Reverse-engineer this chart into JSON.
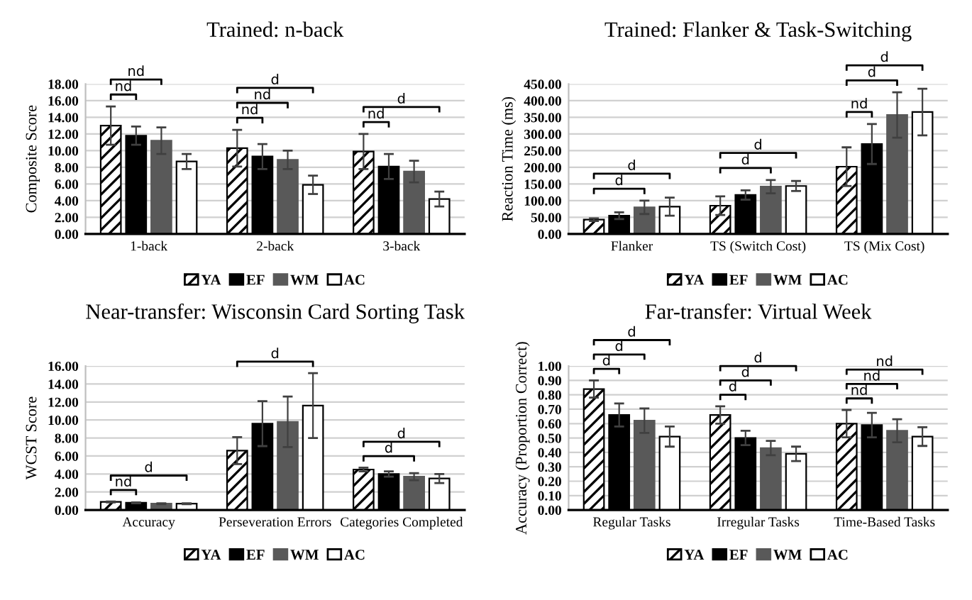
{
  "chart_data": [
    {
      "type": "bar",
      "title": "Trained: n-back",
      "ylabel": "Composite Score",
      "categories": [
        "1-back",
        "2-back",
        "3-back"
      ],
      "series": [
        {
          "name": "YA",
          "color": "#000000",
          "values": [
            13.0,
            10.3,
            9.9
          ],
          "errors": [
            2.3,
            2.2,
            2.1
          ]
        },
        {
          "name": "EF",
          "color": "#000000",
          "values": [
            11.8,
            9.3,
            8.1
          ],
          "errors": [
            1.1,
            1.5,
            1.5
          ]
        },
        {
          "name": "WM",
          "color": "#595959",
          "values": [
            11.2,
            8.9,
            7.5
          ],
          "errors": [
            1.6,
            1.1,
            1.3
          ]
        },
        {
          "name": "AC",
          "color": "#ffffff",
          "values": [
            8.7,
            5.9,
            4.2
          ],
          "errors": [
            0.9,
            1.1,
            0.9
          ]
        }
      ],
      "ylim": [
        0,
        18
      ],
      "yticks": [
        {
          "value": 0,
          "label": "0.00"
        },
        {
          "value": 2,
          "label": "2.00"
        },
        {
          "value": 4,
          "label": "4.00"
        },
        {
          "value": 6,
          "label": "6.00"
        },
        {
          "value": 8,
          "label": "8.00"
        },
        {
          "value": 10,
          "label": "10.00"
        },
        {
          "value": 12,
          "label": "12.00"
        },
        {
          "value": 14,
          "label": "14.00"
        },
        {
          "value": 16,
          "label": "16.00"
        },
        {
          "value": 18,
          "label": "18.00"
        }
      ],
      "grid": "y",
      "legend": "bottom",
      "annotations": [
        "nd",
        "nd",
        "nd",
        "nd",
        "d",
        "nd",
        "d"
      ]
    },
    {
      "type": "bar",
      "title": "Trained: Flanker & Task-Switching",
      "ylabel": "Reaction Time (ms)",
      "categories": [
        "Flanker",
        "TS (Switch Cost)",
        "TS (Mix Cost)"
      ],
      "series": [
        {
          "name": "YA",
          "color": "#000000",
          "values": [
            43,
            85,
            202
          ],
          "errors": [
            4,
            28,
            58
          ]
        },
        {
          "name": "EF",
          "color": "#000000",
          "values": [
            55,
            117,
            270
          ],
          "errors": [
            10,
            14,
            60
          ]
        },
        {
          "name": "WM",
          "color": "#595959",
          "values": [
            80,
            142,
            357
          ],
          "errors": [
            20,
            20,
            68
          ]
        },
        {
          "name": "AC",
          "color": "#ffffff",
          "values": [
            82,
            144,
            366
          ],
          "errors": [
            27,
            15,
            70
          ]
        }
      ],
      "ylim": [
        0,
        450
      ],
      "yticks": [
        {
          "value": 0,
          "label": "0.00"
        },
        {
          "value": 50,
          "label": "50.00"
        },
        {
          "value": 100,
          "label": "100.00"
        },
        {
          "value": 150,
          "label": "150.00"
        },
        {
          "value": 200,
          "label": "200.00"
        },
        {
          "value": 250,
          "label": "250.00"
        },
        {
          "value": 300,
          "label": "300.00"
        },
        {
          "value": 350,
          "label": "350.00"
        },
        {
          "value": 400,
          "label": "400.00"
        },
        {
          "value": 450,
          "label": "450.00"
        }
      ],
      "grid": "y",
      "legend": "bottom",
      "annotations": [
        "d",
        "d",
        "d",
        "d",
        "nd",
        "d",
        "d"
      ]
    },
    {
      "type": "bar",
      "title": "Near-transfer: Wisconsin Card Sorting Task",
      "ylabel": "WCST Score",
      "categories": [
        "Accuracy",
        "Perseveration Errors",
        "Categories Completed"
      ],
      "series": [
        {
          "name": "YA",
          "color": "#000000",
          "values": [
            0.9,
            6.6,
            4.5
          ],
          "errors": [
            0.05,
            1.5,
            0.2
          ]
        },
        {
          "name": "EF",
          "color": "#000000",
          "values": [
            0.8,
            9.6,
            4.0
          ],
          "errors": [
            0.05,
            2.5,
            0.3
          ]
        },
        {
          "name": "WM",
          "color": "#595959",
          "values": [
            0.7,
            9.8,
            3.7
          ],
          "errors": [
            0.05,
            2.8,
            0.4
          ]
        },
        {
          "name": "AC",
          "color": "#ffffff",
          "values": [
            0.7,
            11.6,
            3.5
          ],
          "errors": [
            0.05,
            3.6,
            0.5
          ]
        }
      ],
      "ylim": [
        0,
        16
      ],
      "yticks": [
        {
          "value": 0,
          "label": "0.00"
        },
        {
          "value": 2,
          "label": "2.00"
        },
        {
          "value": 4,
          "label": "4.00"
        },
        {
          "value": 6,
          "label": "6.00"
        },
        {
          "value": 8,
          "label": "8.00"
        },
        {
          "value": 10,
          "label": "10.00"
        },
        {
          "value": 12,
          "label": "12.00"
        },
        {
          "value": 14,
          "label": "14.00"
        },
        {
          "value": 16,
          "label": "16.00"
        }
      ],
      "grid": "y",
      "legend": "bottom",
      "annotations": [
        "nd",
        "d",
        "d",
        "d",
        "d"
      ]
    },
    {
      "type": "bar",
      "title": "Far-transfer: Virtual Week",
      "ylabel": "Accuracy (Proportion Correct)",
      "categories": [
        "Regular Tasks",
        "Irregular Tasks",
        "Time-Based Tasks"
      ],
      "series": [
        {
          "name": "YA",
          "color": "#000000",
          "values": [
            0.84,
            0.66,
            0.6
          ],
          "errors": [
            0.06,
            0.06,
            0.095
          ]
        },
        {
          "name": "EF",
          "color": "#000000",
          "values": [
            0.66,
            0.5,
            0.59
          ],
          "errors": [
            0.08,
            0.05,
            0.085
          ]
        },
        {
          "name": "WM",
          "color": "#595959",
          "values": [
            0.62,
            0.43,
            0.55
          ],
          "errors": [
            0.085,
            0.05,
            0.08
          ]
        },
        {
          "name": "AC",
          "color": "#ffffff",
          "values": [
            0.51,
            0.39,
            0.51
          ],
          "errors": [
            0.07,
            0.05,
            0.065
          ]
        }
      ],
      "ylim": [
        0,
        1
      ],
      "yticks": [
        {
          "value": 0,
          "label": "0.00"
        },
        {
          "value": 0.1,
          "label": "0.10"
        },
        {
          "value": 0.2,
          "label": "0.20"
        },
        {
          "value": 0.3,
          "label": "0.30"
        },
        {
          "value": 0.4,
          "label": "0.40"
        },
        {
          "value": 0.5,
          "label": "0.50"
        },
        {
          "value": 0.6,
          "label": "0.60"
        },
        {
          "value": 0.7,
          "label": "0.70"
        },
        {
          "value": 0.8,
          "label": "0.80"
        },
        {
          "value": 0.9,
          "label": "0.90"
        },
        {
          "value": 1,
          "label": "1.00"
        }
      ],
      "grid": "y",
      "legend": "bottom",
      "annotations": [
        "d",
        "d",
        "d",
        "d",
        "d",
        "d",
        "nd",
        "nd",
        "nd"
      ]
    }
  ]
}
